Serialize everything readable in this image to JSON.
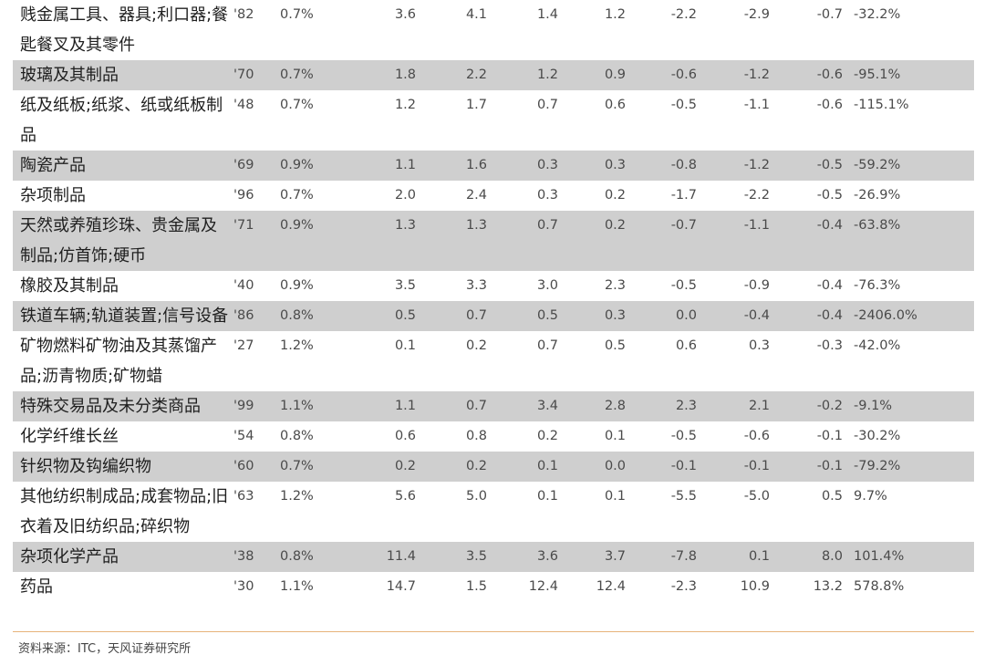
{
  "rows": [
    {
      "name": "贱金属工具、器具;利口器;餐匙餐叉及其零件",
      "code": "'82",
      "share": "0.7%",
      "v1": "3.6",
      "v2": "4.1",
      "v3": "1.4",
      "v4": "1.2",
      "v5": "-2.2",
      "v6": "-2.9",
      "v7": "-0.7",
      "pct": "-32.2%"
    },
    {
      "name": "玻璃及其制品",
      "code": "'70",
      "share": "0.7%",
      "v1": "1.8",
      "v2": "2.2",
      "v3": "1.2",
      "v4": "0.9",
      "v5": "-0.6",
      "v6": "-1.2",
      "v7": "-0.6",
      "pct": "-95.1%"
    },
    {
      "name": "纸及纸板;纸浆、纸或纸板制品",
      "code": "'48",
      "share": "0.7%",
      "v1": "1.2",
      "v2": "1.7",
      "v3": "0.7",
      "v4": "0.6",
      "v5": "-0.5",
      "v6": "-1.1",
      "v7": "-0.6",
      "pct": "-115.1%"
    },
    {
      "name": "陶瓷产品",
      "code": "'69",
      "share": "0.9%",
      "v1": "1.1",
      "v2": "1.6",
      "v3": "0.3",
      "v4": "0.3",
      "v5": "-0.8",
      "v6": "-1.2",
      "v7": "-0.5",
      "pct": "-59.2%"
    },
    {
      "name": "杂项制品",
      "code": "'96",
      "share": "0.7%",
      "v1": "2.0",
      "v2": "2.4",
      "v3": "0.3",
      "v4": "0.2",
      "v5": "-1.7",
      "v6": "-2.2",
      "v7": "-0.5",
      "pct": "-26.9%"
    },
    {
      "name": "天然或养殖珍珠、贵金属及制品;仿首饰;硬币",
      "code": "'71",
      "share": "0.9%",
      "v1": "1.3",
      "v2": "1.3",
      "v3": "0.7",
      "v4": "0.2",
      "v5": "-0.7",
      "v6": "-1.1",
      "v7": "-0.4",
      "pct": "-63.8%"
    },
    {
      "name": "橡胶及其制品",
      "code": "'40",
      "share": "0.9%",
      "v1": "3.5",
      "v2": "3.3",
      "v3": "3.0",
      "v4": "2.3",
      "v5": "-0.5",
      "v6": "-0.9",
      "v7": "-0.4",
      "pct": "-76.3%"
    },
    {
      "name": "铁道车辆;轨道装置;信号设备",
      "code": "'86",
      "share": "0.8%",
      "v1": "0.5",
      "v2": "0.7",
      "v3": "0.5",
      "v4": "0.3",
      "v5": "0.0",
      "v6": "-0.4",
      "v7": "-0.4",
      "pct": "-2406.0%"
    },
    {
      "name": "矿物燃料矿物油及其蒸馏产品;沥青物质;矿物蜡",
      "code": "'27",
      "share": "1.2%",
      "v1": "0.1",
      "v2": "0.2",
      "v3": "0.7",
      "v4": "0.5",
      "v5": "0.6",
      "v6": "0.3",
      "v7": "-0.3",
      "pct": "-42.0%"
    },
    {
      "name": "特殊交易品及未分类商品",
      "code": "'99",
      "share": "1.1%",
      "v1": "1.1",
      "v2": "0.7",
      "v3": "3.4",
      "v4": "2.8",
      "v5": "2.3",
      "v6": "2.1",
      "v7": "-0.2",
      "pct": "-9.1%"
    },
    {
      "name": "化学纤维长丝",
      "code": "'54",
      "share": "0.8%",
      "v1": "0.6",
      "v2": "0.8",
      "v3": "0.2",
      "v4": "0.1",
      "v5": "-0.5",
      "v6": "-0.6",
      "v7": "-0.1",
      "pct": "-30.2%"
    },
    {
      "name": "针织物及钩编织物",
      "code": "'60",
      "share": "0.7%",
      "v1": "0.2",
      "v2": "0.2",
      "v3": "0.1",
      "v4": "0.0",
      "v5": "-0.1",
      "v6": "-0.1",
      "v7": "-0.1",
      "pct": "-79.2%"
    },
    {
      "name": "其他纺织制成品;成套物品;旧衣着及旧纺织品;碎织物",
      "code": "'63",
      "share": "1.2%",
      "v1": "5.6",
      "v2": "5.0",
      "v3": "0.1",
      "v4": "0.1",
      "v5": "-5.5",
      "v6": "-5.0",
      "v7": "0.5",
      "pct": "9.7%"
    },
    {
      "name": "杂项化学产品",
      "code": "'38",
      "share": "0.8%",
      "v1": "11.4",
      "v2": "3.5",
      "v3": "3.6",
      "v4": "3.7",
      "v5": "-7.8",
      "v6": "0.1",
      "v7": "8.0",
      "pct": "101.4%"
    },
    {
      "name": "药品",
      "code": "'30",
      "share": "1.1%",
      "v1": "14.7",
      "v2": "1.5",
      "v3": "12.4",
      "v4": "12.4",
      "v5": "-2.3",
      "v6": "10.9",
      "v7": "13.2",
      "pct": "578.8%"
    }
  ],
  "source": "资料来源：ITC，天风证券研究所"
}
